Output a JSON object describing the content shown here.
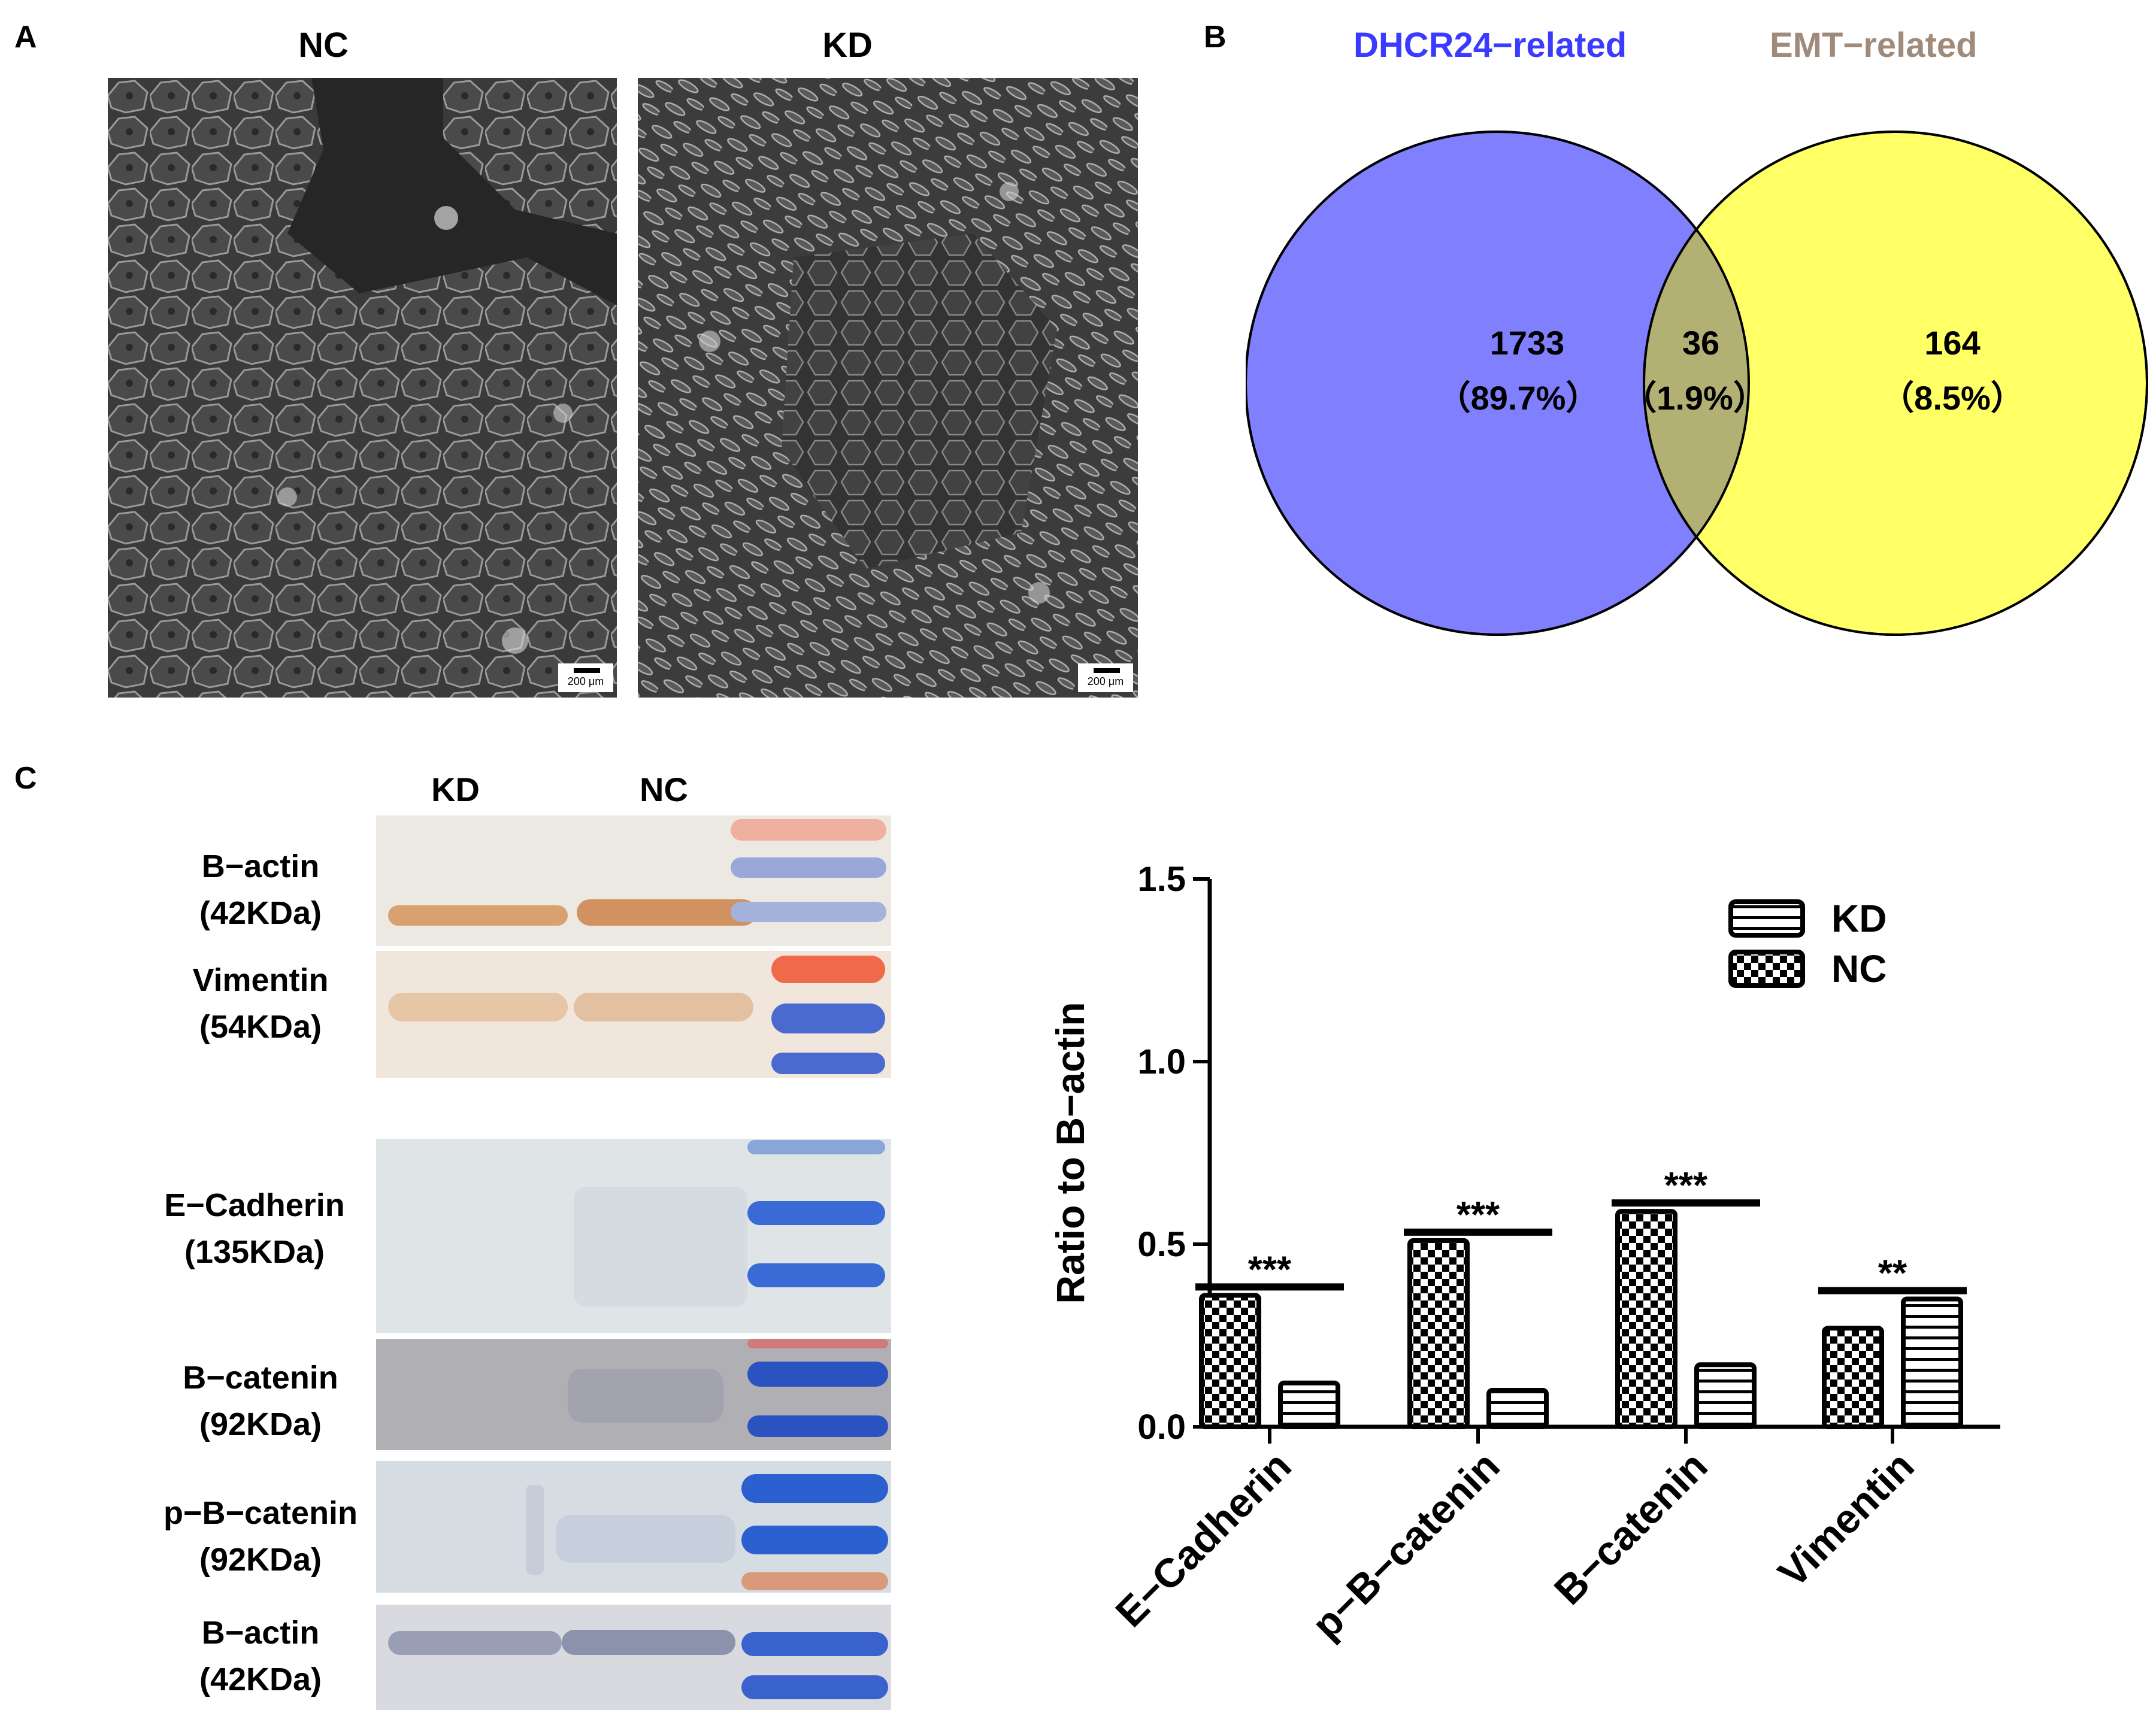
{
  "panels": {
    "a": "A",
    "b": "B",
    "c": "C"
  },
  "panel_a": {
    "titles": [
      "NC",
      "KD"
    ],
    "scale_text": "200 μm"
  },
  "panel_b": {
    "left_title": "DHCR24−related",
    "right_title": "EMT−related",
    "left_color": "#3b3bff",
    "right_color": "#a08a7a",
    "left_fill": "#8080ff",
    "right_fill": "#ffff66",
    "overlap_fill": "#b3b074",
    "left_count": "1733",
    "left_pct": "（89.7%）",
    "overlap_count": "36",
    "overlap_pct": "（1.9%）",
    "right_count": "164",
    "right_pct": "（8.5%）"
  },
  "panel_c": {
    "lanes": [
      "KD",
      "NC"
    ],
    "blots": [
      {
        "name": "B−actin",
        "size": "(42KDa)"
      },
      {
        "name": "Vimentin",
        "size": "(54KDa)"
      },
      {
        "name": "E−Cadherin",
        "size": "(135KDa)"
      },
      {
        "name": "B−catenin",
        "size": "(92KDa)"
      },
      {
        "name": "p−B−catenin",
        "size": "(92KDa)"
      },
      {
        "name": "B−actin",
        "size": "(42KDa)"
      }
    ]
  },
  "chart_data": {
    "type": "bar",
    "ylabel": "Ratio to B−actin",
    "ylim": [
      0,
      1.5
    ],
    "yticks": [
      "0.0",
      "0.5",
      "1.0",
      "1.5"
    ],
    "categories": [
      "E−Cadherin",
      "p−B−catenin",
      "B−catenin",
      "Vimentin"
    ],
    "series": [
      {
        "name": "NC",
        "values": [
          0.36,
          0.51,
          0.59,
          0.27
        ]
      },
      {
        "name": "KD",
        "values": [
          0.12,
          0.1,
          0.17,
          0.35
        ]
      }
    ],
    "significance": [
      "***",
      "***",
      "***",
      "**"
    ],
    "legend": [
      "KD",
      "NC"
    ],
    "legend_position": "top-right"
  }
}
